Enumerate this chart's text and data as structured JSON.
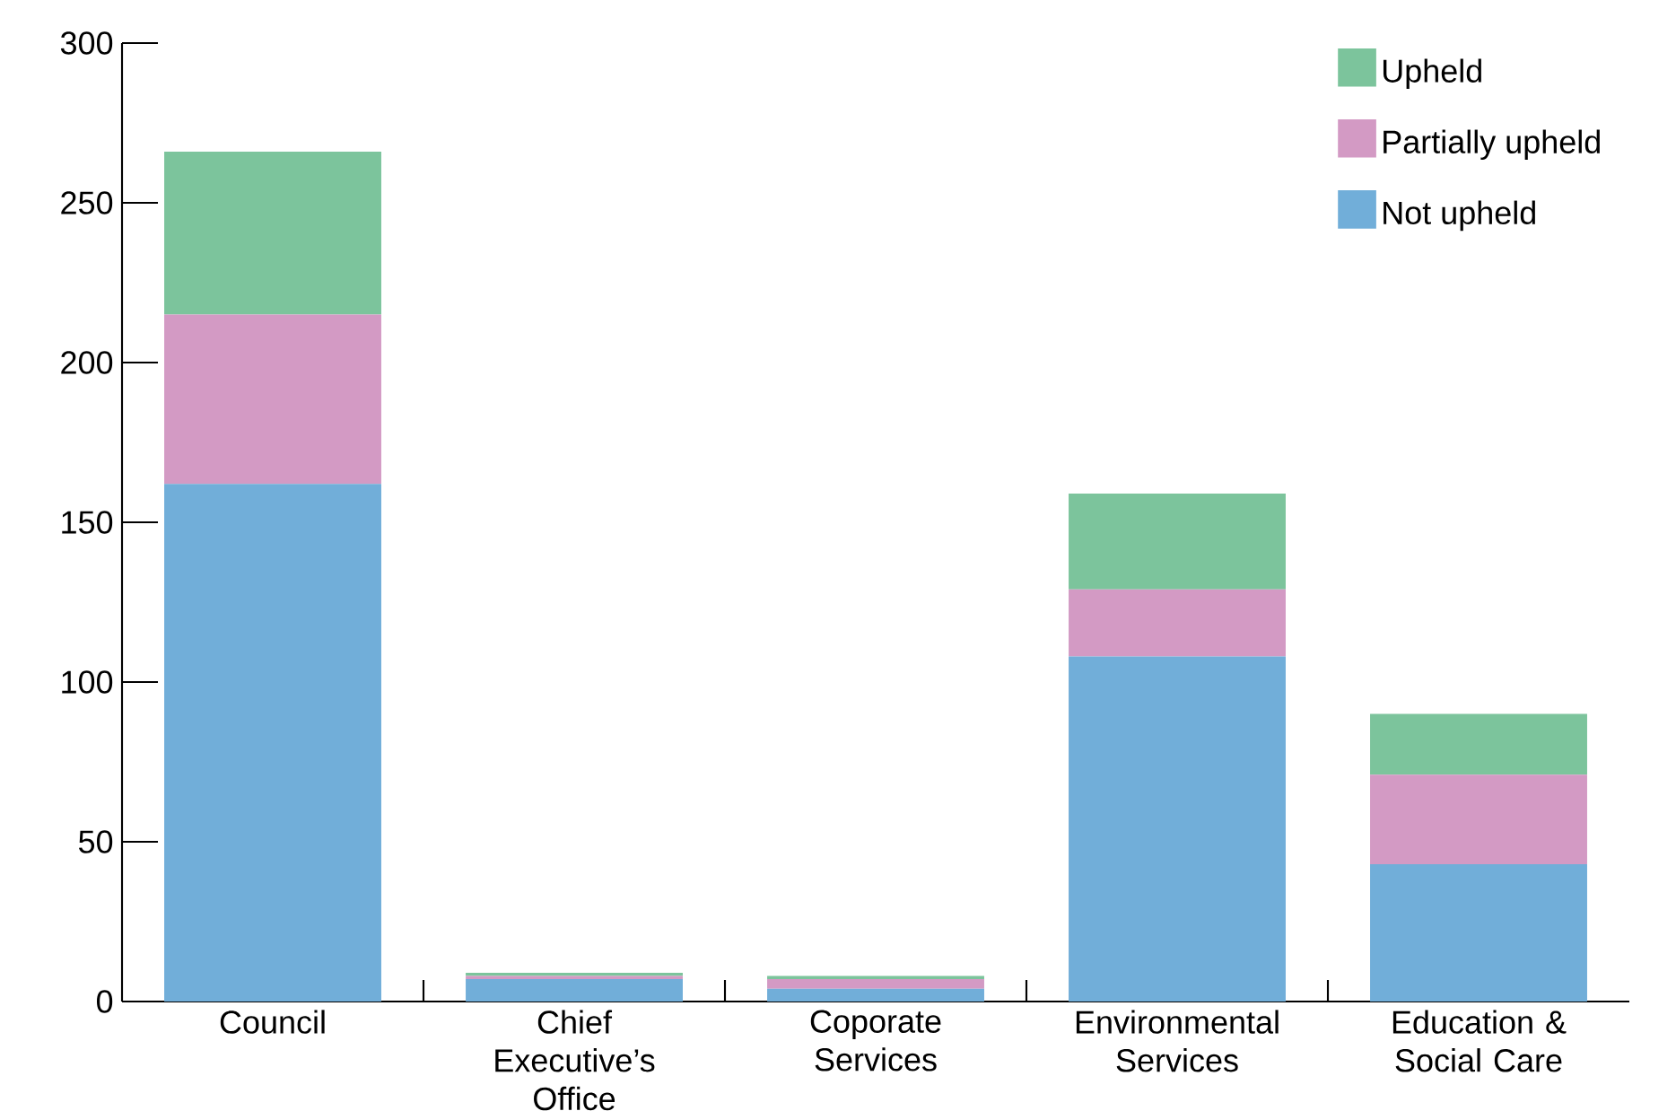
{
  "chart_data": {
    "type": "bar",
    "stacked": true,
    "legend": "top right",
    "categories": [
      "Council",
      "Chief Executive’s Office",
      "Coporate Services",
      "Environmental Services",
      "Education & Social Care"
    ],
    "ylim": [
      0,
      300
    ],
    "yticks": [
      0,
      50,
      100,
      150,
      200,
      250,
      300
    ],
    "series": [
      {
        "name": "Not upheld",
        "color": "#71aed9",
        "values": [
          162,
          7,
          4,
          108,
          43
        ]
      },
      {
        "name": "Partially upheld",
        "color": "#d39ac4",
        "values": [
          53,
          1,
          3,
          21,
          28
        ]
      },
      {
        "name": "Upheld",
        "color": "#7cc49c",
        "values": [
          51,
          1,
          1,
          30,
          19
        ]
      }
    ]
  }
}
